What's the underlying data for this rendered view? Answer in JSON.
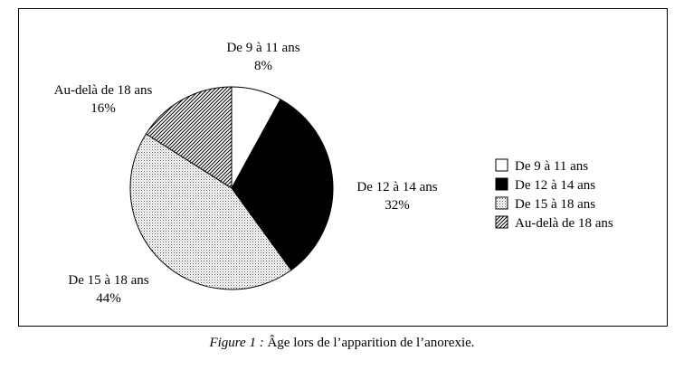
{
  "chart_data": {
    "type": "pie",
    "categories": [
      "De 9 à 11 ans",
      "De 12 à 14 ans",
      "De 15 à 18 ans",
      "Au-delà de 18 ans"
    ],
    "values": [
      8,
      32,
      44,
      16
    ],
    "value_labels": [
      "8%",
      "32%",
      "44%",
      "16%"
    ],
    "fills": [
      "white",
      "black",
      "dotted",
      "hatched"
    ],
    "legend": {
      "placement": "right",
      "entries": [
        "De 9 à 11 ans",
        "De 12 à 14 ans",
        "De 15 à 18 ans",
        "Au-delà de 18 ans"
      ]
    },
    "start_angle_deg": 0,
    "direction": "clockwise"
  },
  "caption": {
    "prefix": "Figure 1 :",
    "text": " Âge lors de l’apparition de l’anorexie."
  }
}
